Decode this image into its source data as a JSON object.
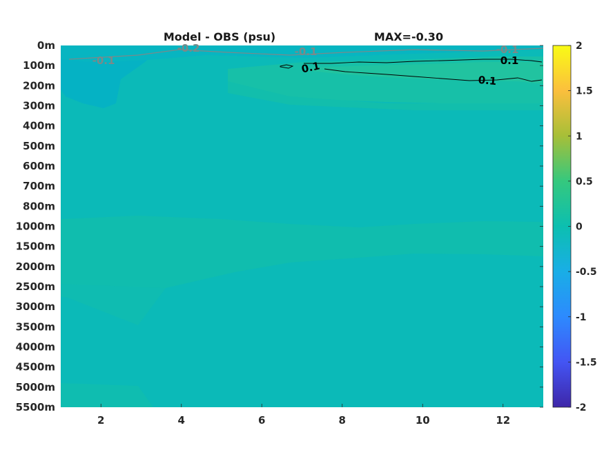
{
  "chart_data": {
    "type": "heatmap",
    "title": "Model - OBS (psu)",
    "subtitle": "MAX=-0.30",
    "xlabel": "",
    "ylabel": "",
    "xlim": [
      1,
      13
    ],
    "x_ticks": [
      2,
      4,
      6,
      8,
      10,
      12
    ],
    "x_tick_labels": [
      "2",
      "4",
      "6",
      "8",
      "10",
      "12"
    ],
    "y_tick_labels": [
      "0m",
      "100m",
      "200m",
      "300m",
      "400m",
      "500m",
      "600m",
      "700m",
      "800m",
      "1000m",
      "1500m",
      "2000m",
      "2500m",
      "3000m",
      "3500m",
      "4000m",
      "4500m",
      "5000m",
      "5500m"
    ],
    "colorbar": {
      "colormap": "parula",
      "clim": [
        -2,
        2
      ],
      "ticks": [
        2,
        1.5,
        1,
        0.5,
        0,
        -0.5,
        -1,
        -1.5,
        -2
      ],
      "tick_labels": [
        "2",
        "1.5",
        "1",
        "0.5",
        "0",
        "-0.5",
        "-1",
        "-1.5",
        "-2"
      ]
    },
    "field_summary": {
      "background_value": 0.0,
      "near_surface_positive_band": {
        "x_range": [
          7,
          13
        ],
        "depth_range": [
          "100m",
          "200m"
        ],
        "value": 0.12
      },
      "near_surface_negative_patch": {
        "x_range": [
          1,
          2.5
        ],
        "depth_range": [
          "0m",
          "300m"
        ],
        "value": -0.12
      },
      "deep_positive_band": {
        "x_range": [
          1,
          9
        ],
        "depth_range": [
          "1000m",
          "2500m"
        ],
        "value": 0.04
      }
    },
    "contour_labels": [
      {
        "text": "-0.1",
        "level": -0.1
      },
      {
        "text": "-0.2",
        "level": -0.2
      },
      {
        "text": "-0.1",
        "level": -0.1
      },
      {
        "text": "-0.1",
        "level": -0.1
      },
      {
        "text": "0.1",
        "level": 0.1
      },
      {
        "text": "0.1",
        "level": 0.1
      },
      {
        "text": "0.1",
        "level": 0.1
      }
    ]
  }
}
